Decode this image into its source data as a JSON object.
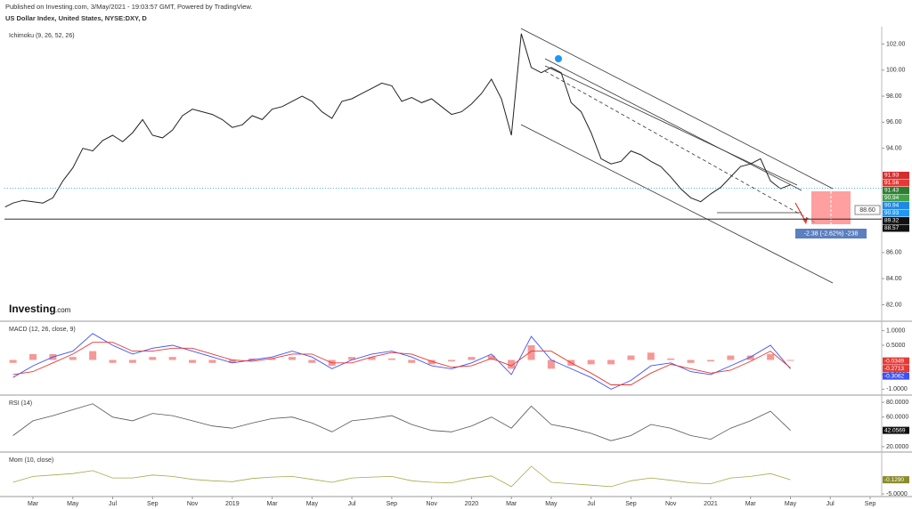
{
  "header": {
    "published": "Published on Investing.com, 3/May/2021 - 19:03:57 GMT, Powered by TradingView.",
    "symbol": "US Dollar Index, United States, NYSE:DXY, D"
  },
  "logo": {
    "name": "Investing",
    "suffix": ".com"
  },
  "annotations": {
    "target": "88.60",
    "measure": "-2.38 (-2.62%) -238"
  },
  "chart_data": [
    {
      "type": "line",
      "title": "Ichimoku (9, 26, 52, 26)",
      "color": "#222222",
      "x": [
        0.6,
        1,
        1.5,
        2,
        2.5,
        3,
        3.5,
        4,
        4.5,
        5,
        5.5,
        6,
        6.5,
        7,
        7.5,
        8,
        8.5,
        9,
        9.5,
        10,
        10.5,
        11,
        11.5,
        12,
        12.5,
        13,
        13.5,
        14,
        14.5,
        15,
        15.5,
        16,
        16.5,
        17,
        17.5,
        18,
        18.5,
        19,
        19.5,
        20,
        20.5,
        21,
        21.5,
        22,
        22.5,
        23,
        23.5,
        24,
        24.5,
        25,
        25.5,
        26,
        26.5,
        27,
        27.5,
        28,
        28.5,
        29,
        29.5,
        30,
        30.5,
        31,
        31.5,
        32,
        32.5,
        33,
        33.5,
        34,
        34.5,
        35,
        35.5,
        36,
        36.5,
        37,
        37.5,
        38,
        38.5,
        39,
        39.5,
        40
      ],
      "values": [
        89.5,
        89.8,
        90.0,
        89.9,
        89.8,
        90.2,
        91.5,
        92.5,
        94.0,
        93.8,
        94.6,
        95.0,
        94.5,
        95.2,
        96.2,
        95.0,
        94.8,
        95.4,
        96.5,
        97.0,
        96.8,
        96.6,
        96.2,
        95.6,
        95.8,
        96.5,
        96.2,
        97.0,
        97.2,
        97.6,
        98.0,
        97.6,
        96.8,
        96.3,
        97.6,
        97.8,
        98.2,
        98.6,
        99.0,
        98.8,
        97.6,
        97.9,
        97.5,
        97.8,
        97.2,
        96.6,
        96.8,
        97.4,
        98.2,
        99.3,
        97.8,
        95.0,
        102.8,
        100.2,
        99.8,
        100.2,
        99.8,
        97.5,
        96.8,
        95.2,
        93.2,
        92.8,
        93.0,
        93.8,
        93.5,
        93.0,
        92.6,
        91.8,
        90.9,
        90.2,
        89.9,
        90.5,
        91.0,
        91.8,
        92.6,
        92.8,
        93.2,
        91.5,
        90.9,
        91.2
      ],
      "xlim": [
        0.57,
        44.58
      ],
      "xticks": [
        {
          "value": 2,
          "label": "Mar"
        },
        {
          "value": 4,
          "label": "May"
        },
        {
          "value": 6,
          "label": "Jul"
        },
        {
          "value": 8,
          "label": "Sep"
        },
        {
          "value": 10,
          "label": "Nov"
        },
        {
          "value": 12,
          "label": "2019"
        },
        {
          "value": 14,
          "label": "Mar"
        },
        {
          "value": 16,
          "label": "May"
        },
        {
          "value": 18,
          "label": "Jul"
        },
        {
          "value": 20,
          "label": "Sep"
        },
        {
          "value": 22,
          "label": "Nov"
        },
        {
          "value": 24,
          "label": "2020"
        },
        {
          "value": 26,
          "label": "Mar"
        },
        {
          "value": 28,
          "label": "May"
        },
        {
          "value": 30,
          "label": "Jul"
        },
        {
          "value": 32,
          "label": "Sep"
        },
        {
          "value": 34,
          "label": "Nov"
        },
        {
          "value": 36,
          "label": "2021"
        },
        {
          "value": 38,
          "label": "Mar"
        },
        {
          "value": 40,
          "label": "May"
        },
        {
          "value": 42,
          "label": "Jul"
        },
        {
          "value": 44,
          "label": "Sep"
        }
      ],
      "ylim": [
        80.8,
        103.33
      ],
      "yticks": [
        {
          "value": 102,
          "label": "102.00"
        },
        {
          "value": 100,
          "label": "100.00"
        },
        {
          "value": 98,
          "label": "98.00"
        },
        {
          "value": 96,
          "label": "96.00"
        },
        {
          "value": 94,
          "label": "94.00"
        },
        {
          "value": 86,
          "label": "86.00"
        },
        {
          "value": 84,
          "label": "84.00"
        },
        {
          "value": 82,
          "label": "82.00"
        }
      ],
      "price_labels": [
        {
          "value": 91.93,
          "label": "91.93",
          "color": "#d32f2f"
        },
        {
          "value": 91.56,
          "label": "91.56",
          "color": "#e53935"
        },
        {
          "value": 91.43,
          "label": "91.43",
          "color": "#2e7d32"
        },
        {
          "value": 90.94,
          "label": "90.94",
          "color": "#43a047"
        },
        {
          "value": 90.94,
          "label": "90.94",
          "color": "#1e88e5"
        },
        {
          "value": 90.93,
          "label": "90.93",
          "color": "#2196f3"
        },
        {
          "value": 89.32,
          "label": "89.32",
          "color": "#111111"
        },
        {
          "value": 88.57,
          "label": "88.57",
          "color": "#111111"
        }
      ]
    },
    {
      "type": "line",
      "title": "MACD (12, 26, close, 9)",
      "x": [
        1,
        2,
        3,
        4,
        5,
        6,
        7,
        8,
        9,
        10,
        11,
        12,
        13,
        14,
        15,
        16,
        17,
        18,
        19,
        20,
        21,
        22,
        23,
        24,
        25,
        26,
        27,
        28,
        29,
        30,
        31,
        32,
        33,
        34,
        35,
        36,
        37,
        38,
        39,
        40
      ],
      "series": [
        {
          "style": "bar",
          "color": "#ef5350",
          "values": [
            -0.1,
            0.2,
            0.2,
            0.1,
            0.3,
            -0.1,
            -0.1,
            0.1,
            0.1,
            -0.1,
            -0.1,
            -0.1,
            0.05,
            0.05,
            0.1,
            -0.1,
            -0.2,
            0.1,
            0.1,
            0.05,
            -0.1,
            -0.15,
            -0.05,
            0.1,
            0.15,
            -0.3,
            0.5,
            -0.3,
            -0.2,
            -0.15,
            -0.15,
            0.15,
            0.25,
            0.05,
            -0.1,
            -0.05,
            0.15,
            0.15,
            0.2,
            -0.03
          ]
        },
        {
          "style": "line",
          "color": "#3f51f5",
          "values": [
            -0.6,
            -0.2,
            0.1,
            0.3,
            0.9,
            0.5,
            0.2,
            0.4,
            0.5,
            0.3,
            0.1,
            -0.1,
            0.0,
            0.1,
            0.3,
            0.1,
            -0.3,
            0.0,
            0.2,
            0.3,
            0.1,
            -0.2,
            -0.3,
            -0.1,
            0.2,
            -0.5,
            0.8,
            0.0,
            -0.3,
            -0.6,
            -1.0,
            -0.7,
            -0.2,
            -0.1,
            -0.4,
            -0.5,
            -0.2,
            0.1,
            0.5,
            -0.3
          ]
        },
        {
          "style": "line",
          "color": "#e53935",
          "values": [
            -0.5,
            -0.4,
            -0.1,
            0.2,
            0.6,
            0.6,
            0.3,
            0.3,
            0.4,
            0.4,
            0.2,
            0.0,
            -0.05,
            0.05,
            0.2,
            0.2,
            -0.1,
            -0.1,
            0.1,
            0.25,
            0.2,
            -0.05,
            -0.25,
            -0.2,
            0.05,
            -0.2,
            0.3,
            0.3,
            -0.1,
            -0.45,
            -0.85,
            -0.85,
            -0.45,
            -0.15,
            -0.3,
            -0.45,
            -0.35,
            -0.05,
            0.3,
            -0.27
          ]
        }
      ],
      "ylim": [
        -1.17,
        1.29
      ],
      "yticks": [
        {
          "value": 1,
          "label": "1.0000"
        },
        {
          "value": 0.5,
          "label": "0.5000"
        },
        {
          "value": -0.5,
          "label": "-0.5000"
        },
        {
          "value": -1,
          "label": "-1.0000"
        }
      ],
      "price_labels": [
        {
          "value": -0.0349,
          "label": "-0.0349",
          "color": "#e53935"
        },
        {
          "value": -0.2713,
          "label": "-0.2713",
          "color": "#e53935"
        },
        {
          "value": -0.3062,
          "label": "-0.3062",
          "color": "#3f51f5"
        }
      ]
    },
    {
      "type": "line",
      "title": "RSI (14)",
      "color": "#555555",
      "x": [
        1,
        2,
        3,
        4,
        5,
        6,
        7,
        8,
        9,
        10,
        11,
        12,
        13,
        14,
        15,
        16,
        17,
        18,
        19,
        20,
        21,
        22,
        23,
        24,
        25,
        26,
        27,
        28,
        29,
        30,
        31,
        32,
        33,
        34,
        35,
        36,
        37,
        38,
        39,
        40
      ],
      "values": [
        35,
        55,
        62,
        70,
        78,
        60,
        55,
        65,
        62,
        55,
        48,
        45,
        52,
        58,
        60,
        52,
        40,
        55,
        58,
        62,
        50,
        42,
        40,
        48,
        60,
        45,
        75,
        50,
        45,
        38,
        28,
        35,
        50,
        45,
        35,
        30,
        45,
        55,
        68,
        42
      ],
      "ylim": [
        13.9,
        88.6
      ],
      "yticks": [
        {
          "value": 80,
          "label": "80.0000"
        },
        {
          "value": 60,
          "label": "60.0000"
        },
        {
          "value": 20,
          "label": "20.0000"
        }
      ],
      "price_labels": [
        {
          "value": 42.0569,
          "label": "42.0569",
          "color": "#111111"
        }
      ]
    },
    {
      "type": "line",
      "title": "Mom (10, close)",
      "color": "#a8a84a",
      "x": [
        1,
        2,
        3,
        4,
        5,
        6,
        7,
        8,
        9,
        10,
        11,
        12,
        13,
        14,
        15,
        16,
        17,
        18,
        19,
        20,
        21,
        22,
        23,
        24,
        25,
        26,
        27,
        28,
        29,
        30,
        31,
        32,
        33,
        34,
        35,
        36,
        37,
        38,
        39,
        40
      ],
      "values": [
        -1,
        1,
        1.5,
        2,
        3,
        0.5,
        0.5,
        1.5,
        1,
        0,
        -0.5,
        -0.8,
        0.3,
        0.8,
        1,
        0,
        -1,
        0.5,
        0.8,
        1,
        -0.5,
        -1,
        -1.2,
        0.3,
        1.2,
        -2.5,
        4.5,
        -1,
        -1.5,
        -2,
        -2.5,
        -0.5,
        0.5,
        -0.3,
        -1.2,
        -1.5,
        0.5,
        1,
        2,
        -0.129
      ],
      "ylim": [
        -5.6,
        9.1
      ],
      "yticks": [
        {
          "value": -5,
          "label": "-5.0000"
        }
      ],
      "price_labels": [
        {
          "value": -0.129,
          "label": "-0.1290",
          "color": "#8c8c2a"
        }
      ]
    }
  ]
}
